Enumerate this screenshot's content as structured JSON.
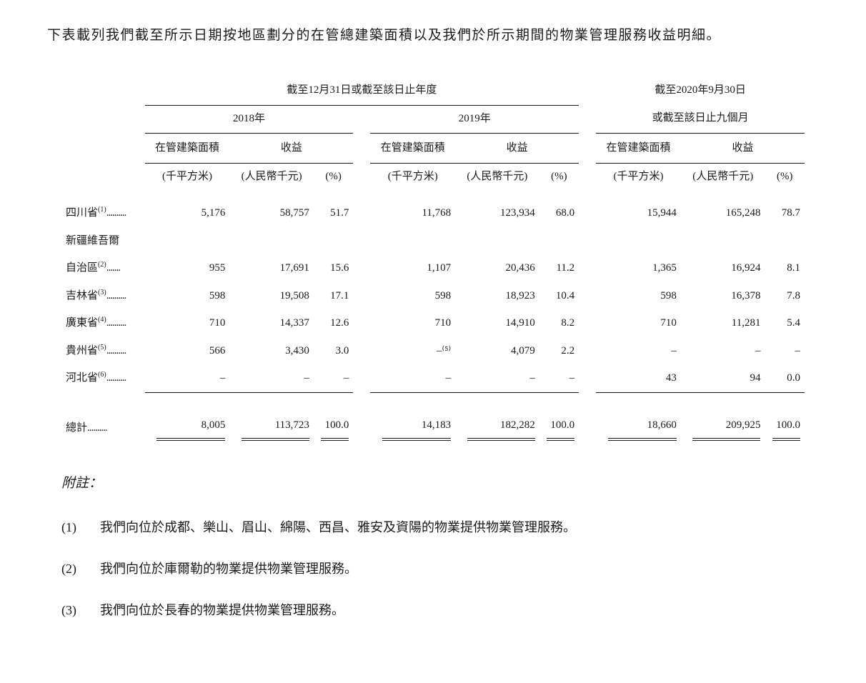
{
  "intro": "下表載列我們截至所示日期按地區劃分的在管總建築面積以及我們於所示期間的物業管理服務收益明細。",
  "headers": {
    "period1": "截至12月31日或截至該日止年度",
    "period2": "截至2020年9月30日",
    "period2_sub": "或截至該日止九個月",
    "year_2018": "2018年",
    "year_2019": "2019年",
    "col_area": "在管建築面積",
    "col_revenue": "收益",
    "unit_area": "(千平方米)",
    "unit_rmb": "(人民幣千元)",
    "unit_pct": "(%)"
  },
  "rows": [
    {
      "label": "四川省",
      "sup": "(1)",
      "dots": true,
      "data": [
        "5,176",
        "58,757",
        "51.7",
        "11,768",
        "123,934",
        "68.0",
        "15,944",
        "165,248",
        "78.7"
      ]
    },
    {
      "label": "新疆維吾爾",
      "sup": "",
      "dots": false,
      "data": [
        "",
        "",
        "",
        "",
        "",
        "",
        "",
        "",
        ""
      ]
    },
    {
      "label": "自治區",
      "sup": "(2)",
      "dots": "short",
      "indent": true,
      "data": [
        "955",
        "17,691",
        "15.6",
        "1,107",
        "20,436",
        "11.2",
        "1,365",
        "16,924",
        "8.1"
      ]
    },
    {
      "label": "吉林省",
      "sup": "(3)",
      "dots": true,
      "data": [
        "598",
        "19,508",
        "17.1",
        "598",
        "18,923",
        "10.4",
        "598",
        "16,378",
        "7.8"
      ]
    },
    {
      "label": "廣東省",
      "sup": "(4)",
      "dots": true,
      "data": [
        "710",
        "14,337",
        "12.6",
        "710",
        "14,910",
        "8.2",
        "710",
        "11,281",
        "5.4"
      ]
    },
    {
      "label": "貴州省",
      "sup": "(5)",
      "dots": true,
      "data": [
        "566",
        "3,430",
        "3.0",
        "–⁽⁵⁾",
        "4,079",
        "2.2",
        "–",
        "–",
        "–"
      ]
    },
    {
      "label": "河北省",
      "sup": "(6)",
      "dots": true,
      "data": [
        "–",
        "–",
        "–",
        "–",
        "–",
        "–",
        "43",
        "94",
        "0.0"
      ]
    }
  ],
  "total": {
    "label": "總計",
    "data": [
      "8,005",
      "113,723",
      "100.0",
      "14,183",
      "182,282",
      "100.0",
      "18,660",
      "209,925",
      "100.0"
    ]
  },
  "footnotes": {
    "title": "附註：",
    "items": [
      {
        "num": "(1)",
        "text": "我們向位於成都、樂山、眉山、綿陽、西昌、雅安及資陽的物業提供物業管理服務。"
      },
      {
        "num": "(2)",
        "text": "我們向位於庫爾勒的物業提供物業管理服務。"
      },
      {
        "num": "(3)",
        "text": "我們向位於長春的物業提供物業管理服務。"
      }
    ]
  }
}
